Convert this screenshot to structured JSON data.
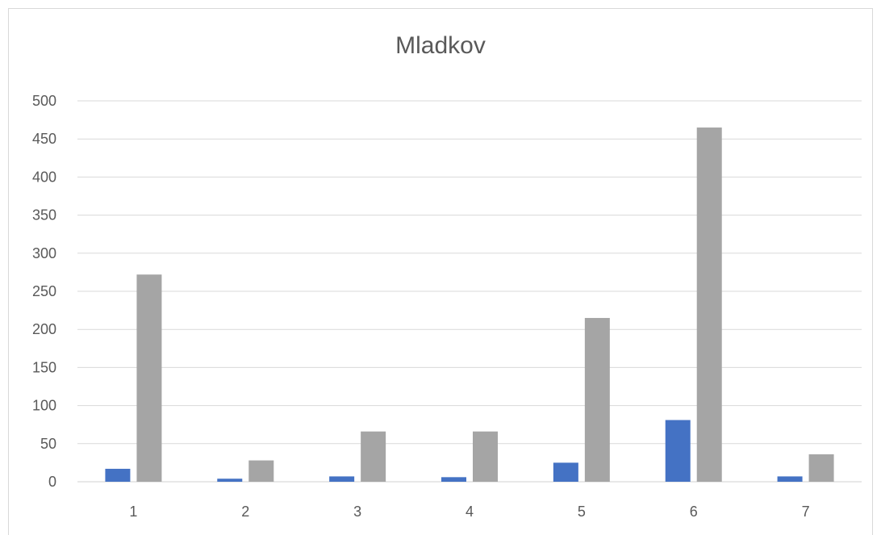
{
  "chart_data": {
    "type": "bar",
    "title": "Mladkov",
    "xlabel": "",
    "ylabel": "",
    "categories": [
      "1",
      "2",
      "3",
      "4",
      "5",
      "6",
      "7"
    ],
    "series": [
      {
        "color": "#4472C4",
        "values": [
          17,
          4,
          7,
          6,
          25,
          81,
          7
        ]
      },
      {
        "color": "#A5A5A5",
        "values": [
          272,
          28,
          66,
          66,
          215,
          465,
          36
        ]
      }
    ],
    "ylim": [
      0,
      500
    ],
    "yticks": [
      "0",
      "50",
      "100",
      "150",
      "200",
      "250",
      "300",
      "350",
      "400",
      "450",
      "500"
    ],
    "grid": true,
    "legend": "none"
  }
}
